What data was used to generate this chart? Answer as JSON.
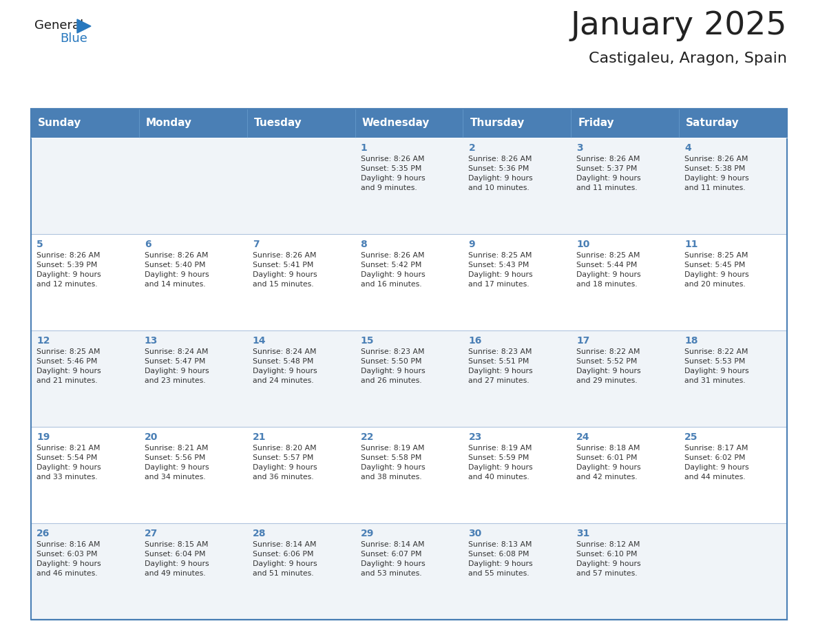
{
  "title": "January 2025",
  "subtitle": "Castigaleu, Aragon, Spain",
  "header_bg": "#4a7fb5",
  "header_text_color": "#ffffff",
  "cell_bg_odd": "#f0f4f8",
  "cell_bg_even": "#ffffff",
  "border_color_outer": "#4a7fb5",
  "border_color_inner": "#b0c4de",
  "text_color_day": "#4a7fb5",
  "text_color_info": "#333333",
  "text_color_title": "#222222",
  "days_of_week": [
    "Sunday",
    "Monday",
    "Tuesday",
    "Wednesday",
    "Thursday",
    "Friday",
    "Saturday"
  ],
  "weeks": [
    [
      {
        "day": "",
        "info": ""
      },
      {
        "day": "",
        "info": ""
      },
      {
        "day": "",
        "info": ""
      },
      {
        "day": "1",
        "info": "Sunrise: 8:26 AM\nSunset: 5:35 PM\nDaylight: 9 hours\nand 9 minutes."
      },
      {
        "day": "2",
        "info": "Sunrise: 8:26 AM\nSunset: 5:36 PM\nDaylight: 9 hours\nand 10 minutes."
      },
      {
        "day": "3",
        "info": "Sunrise: 8:26 AM\nSunset: 5:37 PM\nDaylight: 9 hours\nand 11 minutes."
      },
      {
        "day": "4",
        "info": "Sunrise: 8:26 AM\nSunset: 5:38 PM\nDaylight: 9 hours\nand 11 minutes."
      }
    ],
    [
      {
        "day": "5",
        "info": "Sunrise: 8:26 AM\nSunset: 5:39 PM\nDaylight: 9 hours\nand 12 minutes."
      },
      {
        "day": "6",
        "info": "Sunrise: 8:26 AM\nSunset: 5:40 PM\nDaylight: 9 hours\nand 14 minutes."
      },
      {
        "day": "7",
        "info": "Sunrise: 8:26 AM\nSunset: 5:41 PM\nDaylight: 9 hours\nand 15 minutes."
      },
      {
        "day": "8",
        "info": "Sunrise: 8:26 AM\nSunset: 5:42 PM\nDaylight: 9 hours\nand 16 minutes."
      },
      {
        "day": "9",
        "info": "Sunrise: 8:25 AM\nSunset: 5:43 PM\nDaylight: 9 hours\nand 17 minutes."
      },
      {
        "day": "10",
        "info": "Sunrise: 8:25 AM\nSunset: 5:44 PM\nDaylight: 9 hours\nand 18 minutes."
      },
      {
        "day": "11",
        "info": "Sunrise: 8:25 AM\nSunset: 5:45 PM\nDaylight: 9 hours\nand 20 minutes."
      }
    ],
    [
      {
        "day": "12",
        "info": "Sunrise: 8:25 AM\nSunset: 5:46 PM\nDaylight: 9 hours\nand 21 minutes."
      },
      {
        "day": "13",
        "info": "Sunrise: 8:24 AM\nSunset: 5:47 PM\nDaylight: 9 hours\nand 23 minutes."
      },
      {
        "day": "14",
        "info": "Sunrise: 8:24 AM\nSunset: 5:48 PM\nDaylight: 9 hours\nand 24 minutes."
      },
      {
        "day": "15",
        "info": "Sunrise: 8:23 AM\nSunset: 5:50 PM\nDaylight: 9 hours\nand 26 minutes."
      },
      {
        "day": "16",
        "info": "Sunrise: 8:23 AM\nSunset: 5:51 PM\nDaylight: 9 hours\nand 27 minutes."
      },
      {
        "day": "17",
        "info": "Sunrise: 8:22 AM\nSunset: 5:52 PM\nDaylight: 9 hours\nand 29 minutes."
      },
      {
        "day": "18",
        "info": "Sunrise: 8:22 AM\nSunset: 5:53 PM\nDaylight: 9 hours\nand 31 minutes."
      }
    ],
    [
      {
        "day": "19",
        "info": "Sunrise: 8:21 AM\nSunset: 5:54 PM\nDaylight: 9 hours\nand 33 minutes."
      },
      {
        "day": "20",
        "info": "Sunrise: 8:21 AM\nSunset: 5:56 PM\nDaylight: 9 hours\nand 34 minutes."
      },
      {
        "day": "21",
        "info": "Sunrise: 8:20 AM\nSunset: 5:57 PM\nDaylight: 9 hours\nand 36 minutes."
      },
      {
        "day": "22",
        "info": "Sunrise: 8:19 AM\nSunset: 5:58 PM\nDaylight: 9 hours\nand 38 minutes."
      },
      {
        "day": "23",
        "info": "Sunrise: 8:19 AM\nSunset: 5:59 PM\nDaylight: 9 hours\nand 40 minutes."
      },
      {
        "day": "24",
        "info": "Sunrise: 8:18 AM\nSunset: 6:01 PM\nDaylight: 9 hours\nand 42 minutes."
      },
      {
        "day": "25",
        "info": "Sunrise: 8:17 AM\nSunset: 6:02 PM\nDaylight: 9 hours\nand 44 minutes."
      }
    ],
    [
      {
        "day": "26",
        "info": "Sunrise: 8:16 AM\nSunset: 6:03 PM\nDaylight: 9 hours\nand 46 minutes."
      },
      {
        "day": "27",
        "info": "Sunrise: 8:15 AM\nSunset: 6:04 PM\nDaylight: 9 hours\nand 49 minutes."
      },
      {
        "day": "28",
        "info": "Sunrise: 8:14 AM\nSunset: 6:06 PM\nDaylight: 9 hours\nand 51 minutes."
      },
      {
        "day": "29",
        "info": "Sunrise: 8:14 AM\nSunset: 6:07 PM\nDaylight: 9 hours\nand 53 minutes."
      },
      {
        "day": "30",
        "info": "Sunrise: 8:13 AM\nSunset: 6:08 PM\nDaylight: 9 hours\nand 55 minutes."
      },
      {
        "day": "31",
        "info": "Sunrise: 8:12 AM\nSunset: 6:10 PM\nDaylight: 9 hours\nand 57 minutes."
      },
      {
        "day": "",
        "info": ""
      }
    ]
  ],
  "logo_general_color": "#1a1a1a",
  "logo_blue_color": "#2878be",
  "title_fontsize": 34,
  "subtitle_fontsize": 16,
  "header_fontsize": 11,
  "day_number_fontsize": 10,
  "info_fontsize": 7.8
}
